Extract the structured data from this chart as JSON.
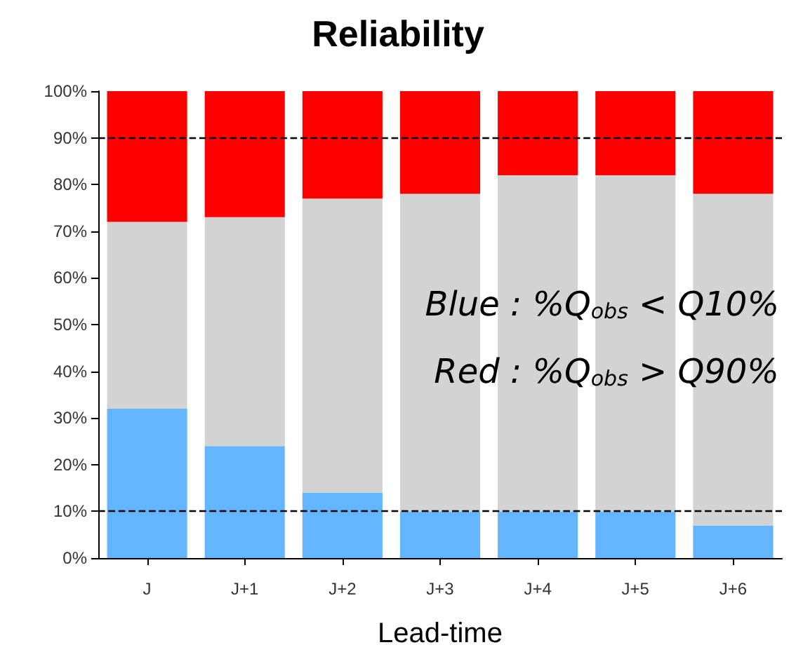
{
  "chart_data": {
    "type": "bar",
    "title": "Reliability",
    "xlabel": "Lead-time",
    "stacked": true,
    "categories": [
      "J",
      "J+1",
      "J+2",
      "J+3",
      "J+4",
      "J+5",
      "J+6"
    ],
    "series": [
      {
        "color": "#62b5fe",
        "values": [
          32,
          24,
          14,
          10,
          10,
          10,
          7
        ]
      },
      {
        "color": "#d3d3d3",
        "values": [
          40,
          49,
          63,
          68,
          72,
          72,
          71
        ]
      },
      {
        "color": "#fe0000",
        "values": [
          28,
          27,
          23,
          22,
          18,
          18,
          22
        ]
      }
    ],
    "ylim": [
      0,
      100
    ],
    "yticks": [
      {
        "value": 0,
        "label": "0%"
      },
      {
        "value": 10,
        "label": "10%"
      },
      {
        "value": 20,
        "label": "20%"
      },
      {
        "value": 30,
        "label": "30%"
      },
      {
        "value": 40,
        "label": "40%"
      },
      {
        "value": 50,
        "label": "50%"
      },
      {
        "value": 60,
        "label": "60%"
      },
      {
        "value": 70,
        "label": "70%"
      },
      {
        "value": 80,
        "label": "80%"
      },
      {
        "value": 90,
        "label": "90%"
      },
      {
        "value": 100,
        "label": "100%"
      }
    ],
    "ref_lines": [
      {
        "axis": "y",
        "value": 10,
        "color": "#000000",
        "line_style": "dashed"
      },
      {
        "axis": "y",
        "value": 90,
        "color": "#000000",
        "line_style": "dashed"
      }
    ],
    "annotations": [
      "Blue : %Q$_{obs}$ < Q10%",
      "Red : %Q$_{obs}$ > Q90%"
    ]
  }
}
